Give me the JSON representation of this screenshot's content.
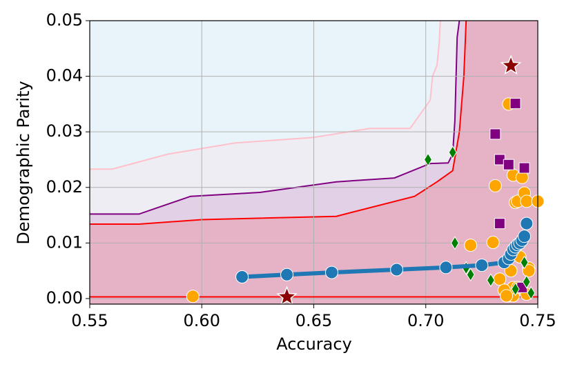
{
  "chart_data": {
    "type": "scatter",
    "xlabel": "Accuracy",
    "ylabel": "Demographic Parity",
    "xlim": [
      0.55,
      0.75
    ],
    "ylim": [
      -0.001,
      0.05
    ],
    "xticks": [
      0.55,
      {
        "value": 0.6,
        "label": "0.60"
      },
      0.65,
      {
        "value": 0.7,
        "label": "0.70"
      },
      0.75
    ],
    "yticks": [
      {
        "value": 0,
        "label": "0.00"
      },
      0.01,
      0.02,
      0.03,
      0.04,
      0.05
    ],
    "grid": true,
    "background": "#e8f4f9",
    "regions": [
      {
        "color": "#ffc0cb",
        "fill": "#efedf4",
        "x": [
          0.55,
          0.56,
          0.585,
          0.6,
          0.615,
          0.65,
          0.675,
          0.693,
          0.702,
          0.703,
          0.705,
          0.706,
          0.7065
        ],
        "values": [
          0.0233,
          0.0233,
          0.026,
          0.027,
          0.028,
          0.029,
          0.0306,
          0.0306,
          0.0357,
          0.04,
          0.042,
          0.046,
          0.05
        ]
      },
      {
        "color": "#800080",
        "fill": "#e2d0e6",
        "x": [
          0.55,
          0.572,
          0.595,
          0.626,
          0.66,
          0.686,
          0.702,
          0.71,
          0.712,
          0.713,
          0.714,
          0.715
        ],
        "values": [
          0.0152,
          0.0152,
          0.0184,
          0.0191,
          0.021,
          0.0217,
          0.0243,
          0.0244,
          0.026,
          0.032,
          0.047,
          0.05
        ]
      },
      {
        "color": "#ff0000",
        "fill": "#e6b2c6",
        "x": [
          0.55,
          0.572,
          0.6,
          0.66,
          0.695,
          0.705,
          0.712,
          0.715,
          0.717,
          0.718
        ],
        "values": [
          0.0134,
          0.0134,
          0.0142,
          0.0148,
          0.0184,
          0.021,
          0.023,
          0.03,
          0.04,
          0.05
        ]
      }
    ],
    "series": [
      {
        "color": "#ff0000",
        "marker": "none",
        "line": true,
        "linewidth": 2,
        "x": [
          0.55,
          0.75
        ],
        "values": [
          0.0003,
          0.0003
        ]
      },
      {
        "color": "#ffa500",
        "marker": "circle",
        "line": false,
        "x": [
          0.596,
          0.72,
          0.73,
          0.731,
          0.737,
          0.739,
          0.74,
          0.741,
          0.743,
          0.744,
          0.745,
          0.75,
          0.746,
          0.746,
          0.737,
          0.739,
          0.745,
          0.739,
          0.741,
          0.733,
          0.738,
          0.742,
          0.735,
          0.736
        ],
        "values": [
          0.0004,
          0.0096,
          0.0101,
          0.0203,
          0.035,
          0.0222,
          0.0173,
          0.0175,
          0.0218,
          0.019,
          0.0175,
          0.0175,
          0.0055,
          0.005,
          0.0005,
          0.0005,
          0.0008,
          0.002,
          0.002,
          0.0035,
          0.005,
          0.0075,
          0.0015,
          0.0005
        ]
      },
      {
        "color": "#800080",
        "marker": "square",
        "line": false,
        "x": [
          0.74,
          0.731,
          0.733,
          0.737,
          0.744,
          0.733,
          0.743
        ],
        "values": [
          0.0351,
          0.0296,
          0.025,
          0.0241,
          0.0235,
          0.0135,
          0.002
        ]
      },
      {
        "color": "#008000",
        "marker": "diamond",
        "line": false,
        "x": [
          0.701,
          0.712,
          0.713,
          0.718,
          0.72,
          0.729,
          0.744,
          0.745,
          0.747,
          0.74
        ],
        "values": [
          0.025,
          0.0263,
          0.01,
          0.0055,
          0.0043,
          0.0033,
          0.0065,
          0.003,
          0.001,
          0.0017
        ]
      },
      {
        "color": "#1f77b4",
        "marker": "circle",
        "line": true,
        "linewidth": 6,
        "x": [
          0.618,
          0.638,
          0.658,
          0.687,
          0.709,
          0.725,
          0.735,
          0.737,
          0.738,
          0.739,
          0.74,
          0.741,
          0.742,
          0.743,
          0.744,
          0.745
        ],
        "values": [
          0.0039,
          0.0043,
          0.0047,
          0.0052,
          0.0056,
          0.006,
          0.0065,
          0.0072,
          0.008,
          0.0088,
          0.0093,
          0.0097,
          0.01,
          0.0105,
          0.0112,
          0.0135
        ]
      },
      {
        "color": "#8b0000",
        "marker": "star",
        "line": false,
        "x": [
          0.738,
          0.638
        ],
        "values": [
          0.0419,
          0.0003
        ]
      }
    ]
  }
}
